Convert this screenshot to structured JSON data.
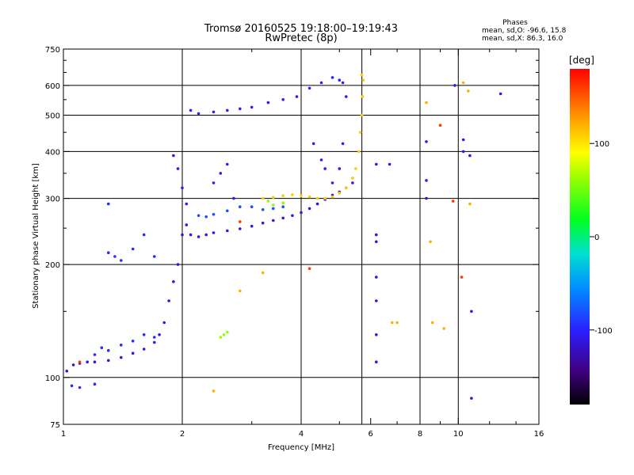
{
  "title_line1": "Tromsø 20160525 19:18:00–19:19:43",
  "title_line2": "RwPretec (8p)",
  "stats": {
    "heading": "Phases",
    "line_o": "mean, sd,O: -96.6, 15.8",
    "line_x": "mean, sd,X:  86.3, 16.0"
  },
  "chart_data": {
    "type": "scatter",
    "xlabel": "Frequency [MHz]",
    "ylabel": "Stationary phase Virtual Height [km]",
    "x_scale": "log",
    "y_scale": "log",
    "xlim": [
      1,
      16
    ],
    "ylim": [
      75,
      750
    ],
    "x_ticks": [
      1,
      2,
      4,
      6,
      8,
      10,
      16
    ],
    "x_ticklabels": [
      "1",
      "2",
      "4",
      "6",
      "8",
      "10",
      "16"
    ],
    "y_ticks": [
      75,
      100,
      200,
      300,
      400,
      500,
      600,
      750
    ],
    "y_ticklabels": [
      "75",
      "100",
      "200",
      "300",
      "400",
      "500",
      "600",
      "750"
    ],
    "grid_x": [
      2,
      4,
      5.7,
      8,
      10
    ],
    "grid_y": [
      100,
      200,
      300,
      400,
      500,
      600
    ],
    "colorbar": {
      "label": "[deg]",
      "range": [
        -180,
        180
      ],
      "ticks": [
        100,
        0,
        -100
      ],
      "ticklabels": [
        "100",
        "0",
        "-100"
      ]
    },
    "series": [
      {
        "phase": -110,
        "points": [
          [
            1.02,
            104
          ],
          [
            1.06,
            108
          ],
          [
            1.1,
            109
          ],
          [
            1.15,
            110
          ],
          [
            1.2,
            110
          ],
          [
            1.3,
            111
          ],
          [
            1.4,
            113
          ],
          [
            1.5,
            116
          ],
          [
            1.6,
            119
          ],
          [
            1.7,
            124
          ],
          [
            1.75,
            130
          ],
          [
            1.8,
            140
          ],
          [
            1.85,
            160
          ],
          [
            1.9,
            180
          ],
          [
            1.95,
            200
          ],
          [
            2.0,
            240
          ],
          [
            2.05,
            255
          ],
          [
            2.1,
            240
          ],
          [
            2.2,
            237
          ],
          [
            2.3,
            240
          ],
          [
            2.4,
            243
          ],
          [
            2.6,
            246
          ],
          [
            2.8,
            249
          ],
          [
            3.0,
            253
          ],
          [
            3.2,
            258
          ],
          [
            3.4,
            262
          ],
          [
            3.6,
            266
          ],
          [
            3.8,
            270
          ],
          [
            4.0,
            275
          ],
          [
            4.2,
            282
          ],
          [
            4.4,
            290
          ],
          [
            4.6,
            298
          ],
          [
            4.8,
            306
          ],
          [
            5.0,
            312
          ],
          [
            5.2,
            320
          ],
          [
            5.4,
            330
          ]
        ]
      },
      {
        "phase": -105,
        "points": [
          [
            1.9,
            390
          ],
          [
            1.95,
            360
          ],
          [
            2.0,
            320
          ],
          [
            2.05,
            290
          ],
          [
            2.4,
            330
          ],
          [
            2.5,
            350
          ],
          [
            2.6,
            370
          ],
          [
            2.7,
            300
          ],
          [
            4.3,
            420
          ],
          [
            4.5,
            380
          ],
          [
            4.6,
            360
          ],
          [
            4.8,
            330
          ],
          [
            5.0,
            360
          ],
          [
            5.1,
            420
          ],
          [
            5.2,
            560
          ]
        ]
      },
      {
        "phase": -100,
        "points": [
          [
            2.1,
            515
          ],
          [
            2.2,
            505
          ],
          [
            2.4,
            510
          ],
          [
            2.6,
            515
          ],
          [
            2.8,
            520
          ],
          [
            3.0,
            525
          ],
          [
            3.3,
            540
          ],
          [
            3.6,
            550
          ],
          [
            3.9,
            560
          ],
          [
            4.2,
            590
          ],
          [
            4.5,
            610
          ],
          [
            4.8,
            630
          ],
          [
            5.0,
            620
          ],
          [
            5.1,
            610
          ]
        ]
      },
      {
        "phase": -95,
        "points": [
          [
            1.3,
            215
          ],
          [
            1.35,
            210
          ],
          [
            1.4,
            205
          ],
          [
            1.5,
            220
          ],
          [
            1.6,
            240
          ],
          [
            1.7,
            210
          ],
          [
            1.3,
            290
          ],
          [
            1.2,
            115
          ],
          [
            1.25,
            120
          ],
          [
            1.3,
            118
          ],
          [
            1.4,
            122
          ],
          [
            1.5,
            125
          ],
          [
            1.6,
            130
          ],
          [
            1.7,
            128
          ],
          [
            1.05,
            95
          ],
          [
            1.1,
            94
          ],
          [
            1.2,
            96
          ]
        ]
      },
      {
        "phase": -80,
        "points": [
          [
            2.2,
            270
          ],
          [
            2.3,
            268
          ],
          [
            2.4,
            272
          ],
          [
            2.6,
            278
          ],
          [
            2.8,
            285
          ],
          [
            3.0,
            285
          ],
          [
            3.2,
            280
          ],
          [
            3.4,
            282
          ],
          [
            3.6,
            285
          ]
        ]
      },
      {
        "phase": 60,
        "points": [
          [
            2.5,
            128
          ],
          [
            2.55,
            130
          ],
          [
            2.6,
            132
          ],
          [
            3.3,
            295
          ],
          [
            3.4,
            288
          ],
          [
            3.6,
            292
          ]
        ]
      },
      {
        "phase": 110,
        "points": [
          [
            3.2,
            300
          ],
          [
            3.4,
            302
          ],
          [
            3.6,
            305
          ],
          [
            3.8,
            307
          ],
          [
            4.0,
            305
          ],
          [
            4.2,
            303
          ],
          [
            4.4,
            300
          ],
          [
            4.6,
            300
          ],
          [
            4.8,
            303
          ],
          [
            5.0,
            310
          ],
          [
            5.2,
            320
          ],
          [
            5.4,
            340
          ],
          [
            5.5,
            360
          ],
          [
            5.6,
            400
          ],
          [
            5.65,
            450
          ],
          [
            5.7,
            500
          ],
          [
            5.72,
            560
          ],
          [
            5.75,
            620
          ],
          [
            5.7,
            640
          ]
        ]
      },
      {
        "phase": -110,
        "points": [
          [
            6.2,
            370
          ],
          [
            6.2,
            240
          ],
          [
            6.2,
            230
          ],
          [
            6.2,
            185
          ],
          [
            6.2,
            160
          ],
          [
            6.2,
            130
          ],
          [
            6.2,
            110
          ],
          [
            6.7,
            370
          ],
          [
            8.3,
            425
          ],
          [
            8.3,
            335
          ],
          [
            8.3,
            300
          ],
          [
            9.8,
            600
          ],
          [
            10.3,
            430
          ],
          [
            10.3,
            400
          ],
          [
            10.7,
            390
          ],
          [
            10.8,
            150
          ],
          [
            10.8,
            88
          ],
          [
            12.8,
            570
          ]
        ]
      },
      {
        "phase": 120,
        "points": [
          [
            8.3,
            540
          ],
          [
            8.5,
            230
          ],
          [
            9.2,
            135
          ],
          [
            10.3,
            610
          ],
          [
            10.6,
            580
          ],
          [
            10.7,
            290
          ],
          [
            7.0,
            140
          ],
          [
            8.6,
            140
          ],
          [
            2.4,
            92
          ],
          [
            3.2,
            190
          ],
          [
            2.8,
            170
          ],
          [
            6.8,
            140
          ]
        ]
      },
      {
        "phase": 160,
        "points": [
          [
            9.0,
            470
          ],
          [
            9.7,
            295
          ],
          [
            10.2,
            185
          ],
          [
            4.2,
            195
          ],
          [
            1.1,
            110
          ],
          [
            2.8,
            260
          ]
        ]
      }
    ]
  }
}
